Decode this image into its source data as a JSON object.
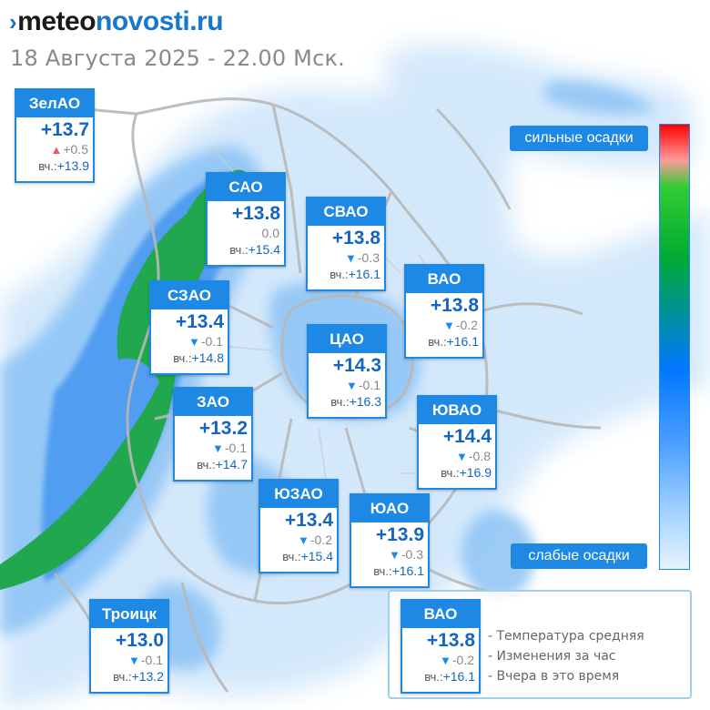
{
  "header": {
    "logo_mark": "›",
    "logo_meteo": "meteo",
    "logo_novosti": "novosti",
    "logo_ru": ".ru",
    "date_time": "18 Августа 2025 - 22.00 Мск."
  },
  "colors": {
    "accent": "#1e88e5",
    "temp_text": "#1565c0",
    "drop_arrow": "#1e88e5",
    "rise_arrow": "#e35d6a",
    "precip_light": "#cfe6fb",
    "precip_mid": "#5aa7f0",
    "precip_heavy": "#21a84f"
  },
  "map": {
    "description_icons": [
      "district-boundaries",
      "precipitation-overlay"
    ]
  },
  "districts": [
    {
      "name": "ЗелАО",
      "temp": "+13.7",
      "delta": "+0.5",
      "direction": "up",
      "yesterday_label": "вч.:",
      "yesterday": "+13.9"
    },
    {
      "name": "САО",
      "temp": "+13.8",
      "delta": "0.0",
      "direction": "none",
      "yesterday_label": "вч.:",
      "yesterday": "+15.4"
    },
    {
      "name": "СВАО",
      "temp": "+13.8",
      "delta": "-0.3",
      "direction": "down",
      "yesterday_label": "вч.:",
      "yesterday": "+16.1"
    },
    {
      "name": "ВАО",
      "temp": "+13.8",
      "delta": "-0.2",
      "direction": "down",
      "yesterday_label": "вч.:",
      "yesterday": "+16.1"
    },
    {
      "name": "СЗАО",
      "temp": "+13.4",
      "delta": "-0.1",
      "direction": "down",
      "yesterday_label": "вч.:",
      "yesterday": "+14.8"
    },
    {
      "name": "ЦАО",
      "temp": "+14.3",
      "delta": "-0.1",
      "direction": "down",
      "yesterday_label": "вч.:",
      "yesterday": "+16.3"
    },
    {
      "name": "ЗАО",
      "temp": "+13.2",
      "delta": "-0.1",
      "direction": "down",
      "yesterday_label": "вч.:",
      "yesterday": "+14.7"
    },
    {
      "name": "ЮВАО",
      "temp": "+14.4",
      "delta": "-0.8",
      "direction": "down",
      "yesterday_label": "вч.:",
      "yesterday": "+16.9"
    },
    {
      "name": "ЮЗАО",
      "temp": "+13.4",
      "delta": "-0.2",
      "direction": "down",
      "yesterday_label": "вч.:",
      "yesterday": "+15.4"
    },
    {
      "name": "ЮАО",
      "temp": "+13.9",
      "delta": "-0.3",
      "direction": "down",
      "yesterday_label": "вч.:",
      "yesterday": "+16.1"
    },
    {
      "name": "Троицк",
      "temp": "+13.0",
      "delta": "-0.1",
      "direction": "down",
      "yesterday_label": "вч.:",
      "yesterday": "+13.2"
    }
  ],
  "precip_scale": {
    "top_label": "сильные осадки",
    "bottom_label": "слабые осадки"
  },
  "legend": {
    "sample": {
      "name": "ВАО",
      "temp": "+13.8",
      "delta": "-0.2",
      "direction": "down",
      "yesterday_label": "вч.:",
      "yesterday": "+16.1"
    },
    "lines": [
      "- Температура средняя",
      "- Изменения за час",
      "- Вчера в это время"
    ]
  }
}
